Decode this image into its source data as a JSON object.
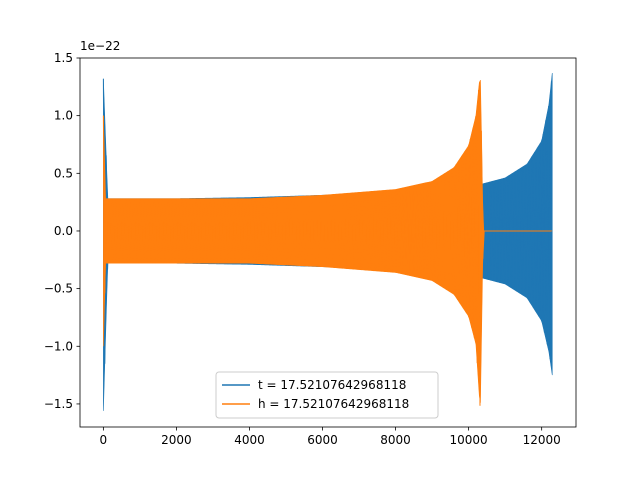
{
  "chart_data": {
    "type": "line",
    "offset_text": "1e−22",
    "xlim": [
      -640,
      12940
    ],
    "ylim": [
      -1.7,
      1.5
    ],
    "x_ticks": [
      0,
      2000,
      4000,
      6000,
      8000,
      10000,
      12000
    ],
    "x_tick_labels": [
      "0",
      "2000",
      "4000",
      "6000",
      "8000",
      "10000",
      "12000"
    ],
    "y_ticks": [
      -1.5,
      -1.0,
      -0.5,
      0.0,
      0.5,
      1.0,
      1.5
    ],
    "y_tick_labels": [
      "−1.5",
      "−1.0",
      "−0.5",
      "0.0",
      "0.5",
      "1.0",
      "1.5"
    ],
    "grid": false,
    "legend_position": "lower-center",
    "series": [
      {
        "name": "t = 17.52107642968118",
        "color": "#1f77b4",
        "envelope": [
          {
            "x": 0,
            "lo": -1.56,
            "hi": 1.32
          },
          {
            "x": 120,
            "lo": -0.28,
            "hi": 0.28
          },
          {
            "x": 2000,
            "lo": -0.28,
            "hi": 0.28
          },
          {
            "x": 4000,
            "lo": -0.29,
            "hi": 0.29
          },
          {
            "x": 6000,
            "lo": -0.31,
            "hi": 0.31
          },
          {
            "x": 8000,
            "lo": -0.33,
            "hi": 0.33
          },
          {
            "x": 10000,
            "lo": -0.37,
            "hi": 0.37
          },
          {
            "x": 10400,
            "lo": -0.41,
            "hi": 0.41
          },
          {
            "x": 11000,
            "lo": -0.46,
            "hi": 0.46
          },
          {
            "x": 11600,
            "lo": -0.58,
            "hi": 0.58
          },
          {
            "x": 12000,
            "lo": -0.78,
            "hi": 0.78
          },
          {
            "x": 12200,
            "lo": -1.05,
            "hi": 1.1
          },
          {
            "x": 12290,
            "lo": -1.25,
            "hi": 1.37
          }
        ]
      },
      {
        "name": "h = 17.52107642968118",
        "color": "#ff7f0e",
        "envelope": [
          {
            "x": 0,
            "lo": -1.0,
            "hi": 1.0
          },
          {
            "x": 60,
            "lo": -0.28,
            "hi": 0.28
          },
          {
            "x": 2000,
            "lo": -0.28,
            "hi": 0.28
          },
          {
            "x": 4000,
            "lo": -0.28,
            "hi": 0.28
          },
          {
            "x": 6000,
            "lo": -0.31,
            "hi": 0.31
          },
          {
            "x": 8000,
            "lo": -0.36,
            "hi": 0.36
          },
          {
            "x": 9000,
            "lo": -0.43,
            "hi": 0.43
          },
          {
            "x": 9600,
            "lo": -0.55,
            "hi": 0.55
          },
          {
            "x": 10000,
            "lo": -0.74,
            "hi": 0.74
          },
          {
            "x": 10200,
            "lo": -0.98,
            "hi": 1.0
          },
          {
            "x": 10320,
            "lo": -1.56,
            "hi": 1.37
          },
          {
            "x": 10400,
            "lo": 0.0,
            "hi": 0.0
          },
          {
            "x": 12290,
            "lo": 0.0,
            "hi": 0.0
          }
        ]
      }
    ]
  }
}
